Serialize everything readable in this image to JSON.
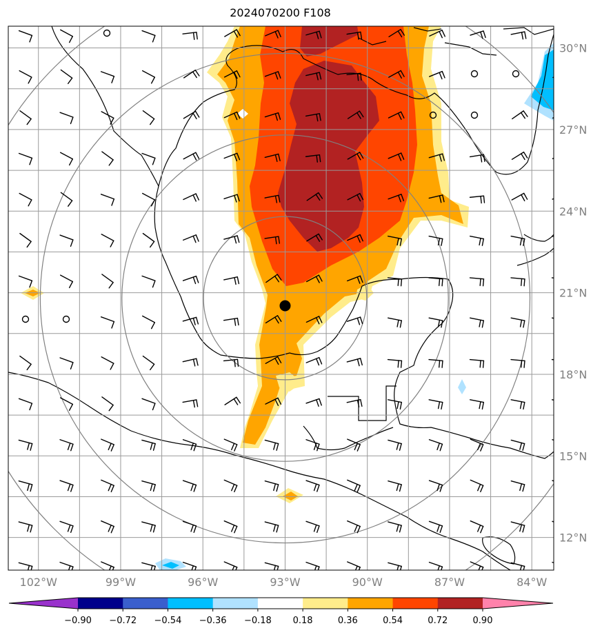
{
  "title": "2024070200 F108",
  "map": {
    "lat_labels": [
      "30°N",
      "27°N",
      "24°N",
      "21°N",
      "18°N",
      "15°N",
      "12°N"
    ],
    "lat_values": [
      30,
      27,
      24,
      21,
      18,
      15,
      12
    ],
    "lon_labels": [
      "102°W",
      "99°W",
      "96°W",
      "93°W",
      "90°W",
      "87°W",
      "84°W"
    ],
    "lon_values": [
      -102,
      -99,
      -96,
      -93,
      -90,
      -87,
      -84
    ],
    "extent": {
      "lon_min": -103.1,
      "lon_max": -83.2,
      "lat_min": 10.8,
      "lat_max": 30.8
    },
    "center": {
      "lon": -93.0,
      "lat": 20.8
    },
    "range_ring_radii_deg": [
      3,
      6,
      9,
      12
    ]
  },
  "colorbar": {
    "labels": [
      "−0.90",
      "−0.72",
      "−0.54",
      "−0.36",
      "−0.18",
      "0.18",
      "0.36",
      "0.54",
      "0.72",
      "0.90"
    ],
    "colors": [
      "#9932cc",
      "#00008b",
      "#3a5fcd",
      "#00bfff",
      "#b0e2ff",
      "#ffffff",
      "#ffec8b",
      "#ffa500",
      "#ff4500",
      "#b22222",
      "#ff82ab"
    ]
  }
}
